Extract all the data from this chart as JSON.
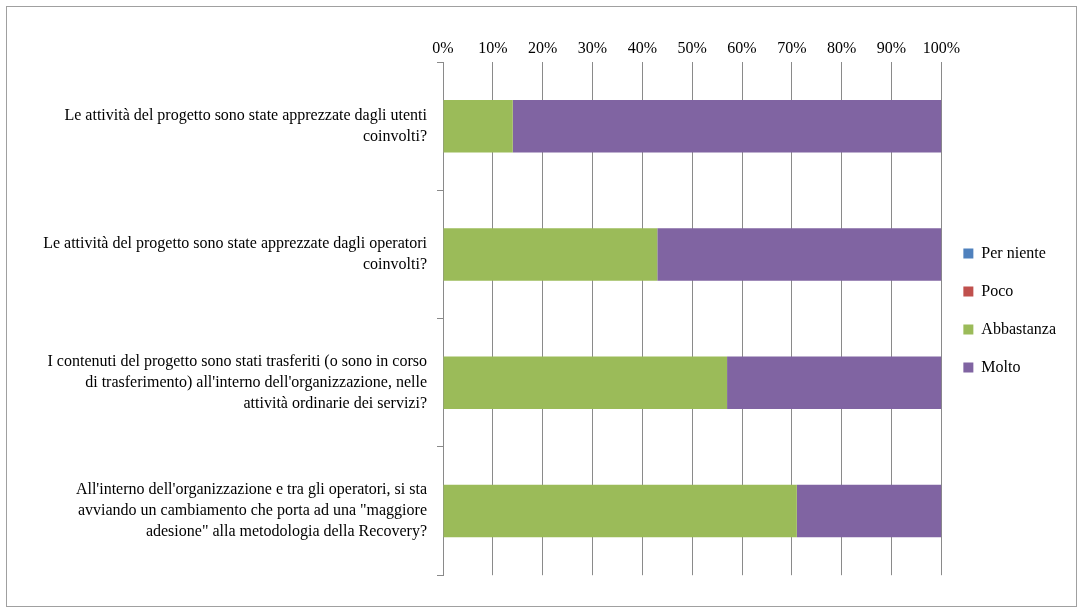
{
  "chart_data": {
    "type": "bar",
    "orientation": "horizontal",
    "stacked": true,
    "categories": [
      "Le attività del progetto sono state apprezzate dagli utenti coinvolti?",
      "Le attività del progetto sono state apprezzate dagli operatori coinvolti?",
      "I contenuti del progetto sono stati trasferiti (o sono in corso di trasferimento) all'interno dell'organizzazione, nelle attività ordinarie dei servizi?",
      "All'interno dell'organizzazione e tra gli operatori, si sta avviando un cambiamento che porta ad una \"maggiore adesione\" alla metodologia della Recovery?"
    ],
    "series": [
      {
        "name": "Per niente",
        "color": "#4f81bd",
        "values": [
          0,
          0,
          0,
          0
        ]
      },
      {
        "name": "Poco",
        "color": "#c0504d",
        "values": [
          0,
          0,
          0,
          0
        ]
      },
      {
        "name": "Abbastanza",
        "color": "#9bbb59",
        "values": [
          14,
          43,
          57,
          71
        ]
      },
      {
        "name": "Molto",
        "color": "#8064a2",
        "values": [
          86,
          57,
          43,
          29
        ]
      }
    ],
    "xlim": [
      0,
      100
    ],
    "xticks": [
      {
        "value": 0,
        "label": "0%"
      },
      {
        "value": 10,
        "label": "10%"
      },
      {
        "value": 20,
        "label": "20%"
      },
      {
        "value": 30,
        "label": "30%"
      },
      {
        "value": 40,
        "label": "40%"
      },
      {
        "value": 50,
        "label": "50%"
      },
      {
        "value": 60,
        "label": "60%"
      },
      {
        "value": 70,
        "label": "70%"
      },
      {
        "value": 80,
        "label": "80%"
      },
      {
        "value": 90,
        "label": "90%"
      },
      {
        "value": 100,
        "label": "100%"
      }
    ],
    "grid": "x",
    "legend": "right"
  }
}
